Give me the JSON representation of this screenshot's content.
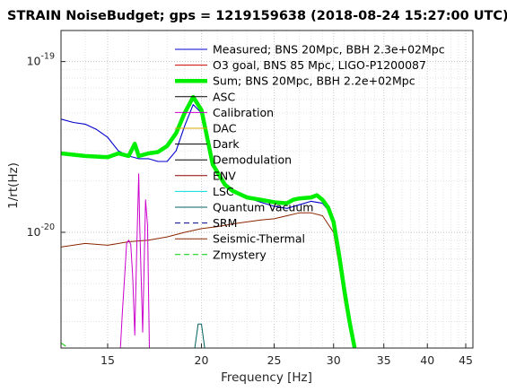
{
  "chart_data": {
    "type": "line",
    "title": "STRAIN NoiseBudget; gps = 1219159638 (2018-08-24 15:27:00 UTC)",
    "xlabel": "Frequency [Hz]",
    "ylabel": "1/rt(Hz)",
    "x_scale": "log",
    "y_scale": "log",
    "xlim": [
      13,
      46
    ],
    "ylim": [
      2.1e-21,
      1.52e-19
    ],
    "grid": true,
    "legend_position": "top-right",
    "x_ticks": [
      {
        "value": 15,
        "label": "15"
      },
      {
        "value": 20,
        "label": "20"
      },
      {
        "value": 25,
        "label": "25"
      },
      {
        "value": 30,
        "label": "30"
      },
      {
        "value": 35,
        "label": "35"
      },
      {
        "value": 40,
        "label": "40"
      },
      {
        "value": 45,
        "label": "45"
      }
    ],
    "y_ticks": [
      {
        "value": 1e-19,
        "base": "10",
        "exp": "-19"
      },
      {
        "value": 1e-20,
        "base": "10",
        "exp": "-20"
      }
    ],
    "series": [
      {
        "name": "Measured; BNS 20Mpc, BBH 2.3e+02Mpc",
        "color": "#0000cc",
        "dash": "solid",
        "width": 1.1,
        "points": [
          [
            13,
            4.6e-20
          ],
          [
            13.5,
            4.4e-20
          ],
          [
            14,
            4.3e-20
          ],
          [
            14.5,
            4e-20
          ],
          [
            15,
            3.6e-20
          ],
          [
            15.5,
            3e-20
          ],
          [
            16,
            2.8e-20
          ],
          [
            16.5,
            2.7e-20
          ],
          [
            17,
            2.7e-20
          ],
          [
            17.5,
            2.6e-20
          ],
          [
            18,
            2.6e-20
          ],
          [
            18.5,
            3e-20
          ],
          [
            19,
            4.2e-20
          ],
          [
            19.5,
            5.6e-20
          ],
          [
            20,
            5e-20
          ],
          [
            20.3,
            3.6e-20
          ],
          [
            20.7,
            2.6e-20
          ],
          [
            21.5,
            1.9e-20
          ],
          [
            22.5,
            1.65e-20
          ],
          [
            24,
            1.5e-20
          ],
          [
            25,
            1.42e-20
          ],
          [
            26,
            1.38e-20
          ],
          [
            27,
            1.45e-20
          ],
          [
            28,
            1.52e-20
          ],
          [
            29,
            1.48e-20
          ],
          [
            29.5,
            1.35e-20
          ],
          [
            30,
            1.1e-20
          ],
          [
            30.5,
            7e-21
          ],
          [
            31,
            4.3e-21
          ],
          [
            31.5,
            2.8e-21
          ],
          [
            32,
            2.1e-21
          ]
        ]
      },
      {
        "name": "O3 goal, BNS 85 Mpc, LIGO-P1200087",
        "color": "#cc0000",
        "dash": "solid",
        "width": 1,
        "points": []
      },
      {
        "name": "Sum; BNS 20Mpc, BBH 2.2e+02Mpc",
        "color": "#00ee00",
        "dash": "solid",
        "width": 4.5,
        "points": [
          [
            13,
            2.9e-20
          ],
          [
            14,
            2.8e-20
          ],
          [
            15,
            2.75e-20
          ],
          [
            15.5,
            2.9e-20
          ],
          [
            16,
            2.8e-20
          ],
          [
            16.3,
            3.3e-20
          ],
          [
            16.5,
            2.8e-20
          ],
          [
            17,
            2.9e-20
          ],
          [
            17.5,
            2.95e-20
          ],
          [
            18,
            3.2e-20
          ],
          [
            18.5,
            3.8e-20
          ],
          [
            19,
            5e-20
          ],
          [
            19.5,
            6.2e-20
          ],
          [
            20,
            5.2e-20
          ],
          [
            20.3,
            3.8e-20
          ],
          [
            20.7,
            2.5e-20
          ],
          [
            21.5,
            1.9e-20
          ],
          [
            22,
            1.75e-20
          ],
          [
            23,
            1.6e-20
          ],
          [
            24,
            1.55e-20
          ],
          [
            25,
            1.5e-20
          ],
          [
            26,
            1.48e-20
          ],
          [
            26.5,
            1.55e-20
          ],
          [
            27,
            1.58e-20
          ],
          [
            28,
            1.6e-20
          ],
          [
            28.5,
            1.65e-20
          ],
          [
            29,
            1.55e-20
          ],
          [
            29.5,
            1.4e-20
          ],
          [
            30,
            1.15e-20
          ],
          [
            30.5,
            7.5e-21
          ],
          [
            31,
            4.6e-21
          ],
          [
            31.5,
            3e-21
          ],
          [
            32,
            2.1e-21
          ]
        ]
      },
      {
        "name": "ASC",
        "color": "#000000",
        "dash": "solid",
        "width": 1,
        "points": []
      },
      {
        "name": "Calibration",
        "color": "#cc00cc",
        "dash": "solid",
        "width": 1,
        "points": [
          [
            15.6,
            2.1e-21
          ],
          [
            15.7,
            3.5e-21
          ],
          [
            15.8,
            5.5e-21
          ],
          [
            15.9,
            8.6e-21
          ],
          [
            16.0,
            9e-21
          ],
          [
            16.1,
            8.5e-21
          ],
          [
            16.2,
            5.5e-21
          ],
          [
            16.3,
            2.5e-21
          ],
          [
            16.4,
            8e-21
          ],
          [
            16.5,
            2.2e-20
          ],
          [
            16.55,
            1.1e-20
          ],
          [
            16.7,
            2.6e-21
          ],
          [
            16.85,
            1.55e-20
          ],
          [
            16.95,
            1.1e-20
          ],
          [
            17.05,
            2.1e-21
          ]
        ]
      },
      {
        "name": "DAC",
        "color": "#ddaa00",
        "dash": "solid",
        "width": 1,
        "points": []
      },
      {
        "name": "Dark",
        "color": "#000000",
        "dash": "solid",
        "width": 1,
        "points": []
      },
      {
        "name": "Demodulation",
        "color": "#000000",
        "dash": "solid",
        "width": 1,
        "points": []
      },
      {
        "name": "ENV",
        "color": "#8b0000",
        "dash": "solid",
        "width": 1,
        "points": []
      },
      {
        "name": "LSC",
        "color": "#00dddd",
        "dash": "solid",
        "width": 1,
        "points": [
          [
            13,
            2.9e-20
          ],
          [
            14,
            2.7e-20
          ],
          [
            15,
            2.6e-20
          ],
          [
            16,
            2.4e-20
          ],
          [
            17,
            2.35e-20
          ],
          [
            17.5,
            2.3e-20
          ],
          [
            18,
            2.5e-20
          ],
          [
            18.5,
            3.4e-20
          ],
          [
            19,
            4.8e-20
          ],
          [
            19.5,
            6e-20
          ],
          [
            20,
            5e-20
          ],
          [
            20.5,
            3e-20
          ],
          [
            21,
            2e-20
          ],
          [
            22,
            1.55e-20
          ],
          [
            23,
            1.35e-20
          ],
          [
            24,
            1.25e-20
          ],
          [
            25,
            1.2e-20
          ],
          [
            26,
            1.18e-20
          ],
          [
            27,
            1.22e-20
          ],
          [
            28,
            1.3e-20
          ],
          [
            29,
            1.3e-20
          ],
          [
            29.5,
            1.2e-20
          ],
          [
            30,
            1e-20
          ],
          [
            30.5,
            6.5e-21
          ],
          [
            31,
            4e-21
          ],
          [
            31.5,
            2.7e-21
          ],
          [
            32,
            2.1e-21
          ]
        ]
      },
      {
        "name": "Quantum Vacuum",
        "color": "#006060",
        "dash": "solid",
        "width": 1,
        "points": [
          [
            19.6,
            2.1e-21
          ],
          [
            19.8,
            2.9e-21
          ],
          [
            20.0,
            2.9e-21
          ],
          [
            20.2,
            2.1e-21
          ]
        ]
      },
      {
        "name": "SRM",
        "color": "#000088",
        "dash": "dashed",
        "width": 1,
        "points": []
      },
      {
        "name": "Seismic-Thermal",
        "color": "#8b2500",
        "dash": "solid",
        "width": 1,
        "points": [
          [
            13,
            8.2e-21
          ],
          [
            14,
            8.6e-21
          ],
          [
            15,
            8.4e-21
          ],
          [
            16,
            8.8e-21
          ],
          [
            17,
            9e-21
          ],
          [
            18,
            9.4e-21
          ],
          [
            19,
            1e-20
          ],
          [
            20,
            1.05e-20
          ],
          [
            21,
            1.08e-20
          ],
          [
            22,
            1.12e-20
          ],
          [
            23,
            1.15e-20
          ],
          [
            24,
            1.18e-20
          ],
          [
            25,
            1.2e-20
          ],
          [
            26,
            1.25e-20
          ],
          [
            27,
            1.3e-20
          ],
          [
            28,
            1.3e-20
          ],
          [
            29,
            1.25e-20
          ],
          [
            30,
            1e-20
          ],
          [
            30.5,
            6.5e-21
          ],
          [
            31,
            4e-21
          ],
          [
            31.5,
            2.7e-21
          ],
          [
            32,
            2.1e-21
          ]
        ]
      },
      {
        "name": "Zmystery",
        "color": "#00cc00",
        "dash": "dashed",
        "width": 1,
        "points": [
          [
            13,
            2.25e-21
          ],
          [
            13.3,
            2.1e-21
          ]
        ]
      }
    ]
  }
}
